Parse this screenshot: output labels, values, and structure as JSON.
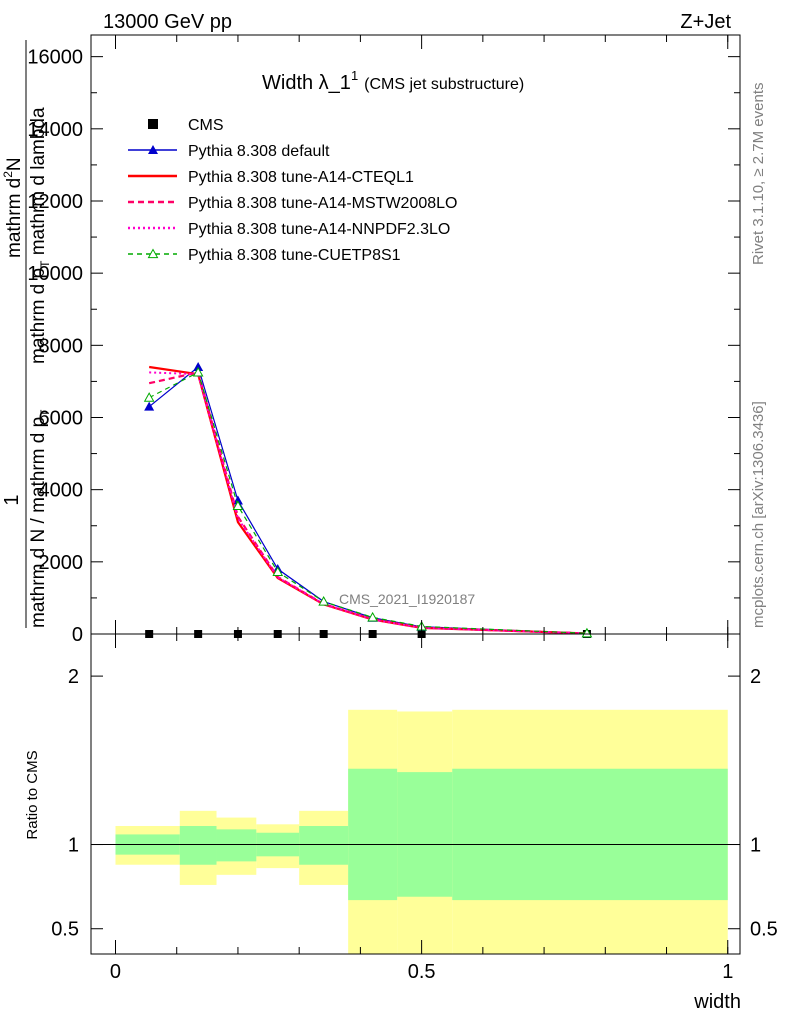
{
  "header": {
    "energy": "13000 GeV pp",
    "process": "Z+Jet",
    "title_main": "Width λ_1",
    "title_sup": "1",
    "title_sub": "(CMS jet substructure)",
    "rivet_version": "Rivet 3.1.10, ≥ 2.7M events",
    "source": "mcplots.cern.ch [arXiv:1306.3436]",
    "analysis": "CMS_2021_I1920187"
  },
  "colors": {
    "default": "#0000cc",
    "cteql1": "#ff0000",
    "mstw": "#ff0066",
    "nnpdf": "#ff00cc",
    "cuetp8s1": "#00aa00",
    "band_outer": "#ffff99",
    "band_inner": "#99ff99"
  },
  "chart_data": [
    {
      "type": "line",
      "title": "Width λ_1",
      "xlabel": "",
      "ylabel_lines": [
        "1",
        "mathrm d N / mathrm d p_T",
        "mathrm d^2N",
        "mathrm d p_T mathrm d lambda"
      ],
      "ylabel_parts": {
        "one": "1",
        "den": "mathrm d N / mathrm d p",
        "num1": "mathrm d",
        "num1_sup": "2",
        "num2": "N",
        "num3": "mathrm d p",
        "num3_sub": "T",
        "num4": " mathrm d lambda",
        "den_sub": "T"
      },
      "xlim": [
        -0.04,
        1.02
      ],
      "ylim": [
        0,
        16600
      ],
      "y_ticks": [
        0,
        2000,
        4000,
        6000,
        8000,
        10000,
        12000,
        14000,
        16000
      ],
      "x": [
        0.055,
        0.135,
        0.2,
        0.265,
        0.34,
        0.42,
        0.5,
        0.77
      ],
      "series": [
        {
          "name": "CMS",
          "style": "marker",
          "values": [
            0,
            0,
            0,
            0,
            0,
            0,
            0,
            0
          ]
        },
        {
          "name": "Pythia 8.308 default",
          "style": "blue-triangle",
          "values": [
            6300,
            7400,
            3700,
            1800,
            900,
            450,
            200,
            20
          ]
        },
        {
          "name": "Pythia 8.308 tune-A14-CTEQL1",
          "style": "red-solid",
          "values": [
            7400,
            7200,
            3100,
            1550,
            820,
            400,
            170,
            15
          ]
        },
        {
          "name": "Pythia 8.308 tune-A14-MSTW2008LO",
          "style": "red-dashed",
          "values": [
            6950,
            7250,
            3250,
            1580,
            830,
            410,
            175,
            15
          ]
        },
        {
          "name": "Pythia 8.308 tune-A14-NNPDF2.3LO",
          "style": "magenta-dotted",
          "values": [
            7250,
            7200,
            3200,
            1570,
            830,
            405,
            172,
            15
          ]
        },
        {
          "name": "Pythia 8.308 tune-CUETP8S1",
          "style": "green-dashed-triangle",
          "values": [
            6550,
            7250,
            3550,
            1720,
            900,
            460,
            210,
            20
          ]
        }
      ]
    },
    {
      "type": "area",
      "title": "",
      "xlabel": "width",
      "ylabel": "Ratio to CMS",
      "xlim": [
        -0.04,
        1.02
      ],
      "ylim": [
        0.35,
        2.25
      ],
      "x_ticks": [
        0,
        0.5,
        1
      ],
      "x_tick_labels": [
        "0",
        "0.5",
        "1"
      ],
      "y_ticks": [
        0.5,
        1,
        2
      ],
      "y_tick_labels": [
        "0.5",
        "1",
        "2"
      ],
      "bins": [
        {
          "lo": 0.0,
          "hi": 0.105,
          "inner": [
            0.94,
            1.06
          ],
          "outer": [
            0.88,
            1.11
          ]
        },
        {
          "lo": 0.105,
          "hi": 0.165,
          "inner": [
            0.88,
            1.11
          ],
          "outer": [
            0.76,
            1.2
          ]
        },
        {
          "lo": 0.165,
          "hi": 0.23,
          "inner": [
            0.9,
            1.09
          ],
          "outer": [
            0.82,
            1.16
          ]
        },
        {
          "lo": 0.23,
          "hi": 0.3,
          "inner": [
            0.93,
            1.07
          ],
          "outer": [
            0.86,
            1.12
          ]
        },
        {
          "lo": 0.3,
          "hi": 0.38,
          "inner": [
            0.88,
            1.11
          ],
          "outer": [
            0.76,
            1.2
          ]
        },
        {
          "lo": 0.38,
          "hi": 0.46,
          "inner": [
            0.67,
            1.45
          ],
          "outer": [
            0.35,
            1.8
          ]
        },
        {
          "lo": 0.46,
          "hi": 0.55,
          "inner": [
            0.69,
            1.43
          ],
          "outer": [
            0.35,
            1.79
          ]
        },
        {
          "lo": 0.55,
          "hi": 1.0,
          "inner": [
            0.67,
            1.45
          ],
          "outer": [
            0.35,
            1.8
          ]
        }
      ]
    }
  ]
}
